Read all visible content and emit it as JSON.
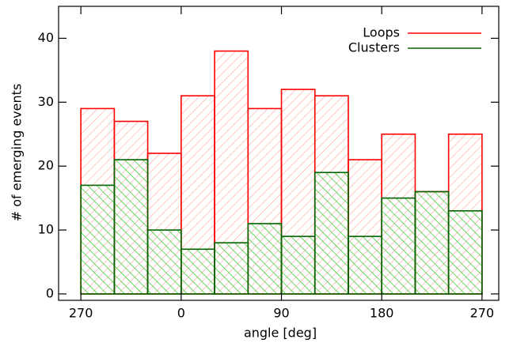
{
  "chart_data": {
    "type": "histogram",
    "xlabel": "angle [deg]",
    "ylabel": "# of emerging events",
    "bins": [
      -90,
      -60,
      -30,
      0,
      30,
      60,
      90,
      120,
      150,
      180,
      210,
      240,
      270
    ],
    "series": [
      {
        "name": "Loops",
        "color": "#ff0000",
        "values": [
          29,
          27,
          22,
          31,
          38,
          29,
          32,
          31,
          21,
          25,
          16,
          25
        ]
      },
      {
        "name": "Clusters",
        "color": "#008000",
        "values": [
          17,
          21,
          10,
          7,
          8,
          11,
          9,
          19,
          9,
          15,
          16,
          13
        ]
      }
    ],
    "xlim": [
      -110,
      285
    ],
    "xticks": [
      {
        "value": -90,
        "label": "270"
      },
      0,
      90,
      180,
      270
    ],
    "ylim": [
      -1,
      45
    ],
    "yticks": [
      0,
      10,
      20,
      30,
      40
    ],
    "legend": "upper right"
  }
}
